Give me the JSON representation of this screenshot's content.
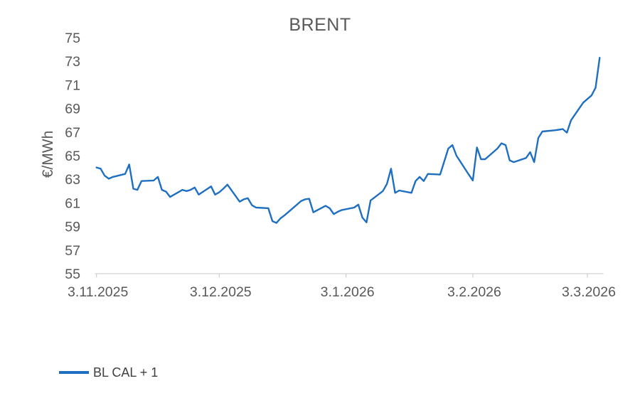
{
  "chart_data": {
    "type": "line",
    "title": "BRENT",
    "ylabel": "€/MWh",
    "ylim": [
      55,
      75
    ],
    "y_ticks": [
      55,
      57,
      59,
      61,
      63,
      65,
      67,
      69,
      71,
      73,
      75
    ],
    "x_ticks": [
      {
        "label": "3.11.2025",
        "day": 0
      },
      {
        "label": "3.12.2025",
        "day": 30
      },
      {
        "label": "3.1.2026",
        "day": 61
      },
      {
        "label": "3.2.2026",
        "day": 92
      },
      {
        "label": "3.3.2026",
        "day": 120
      }
    ],
    "grid": false,
    "legend_position": "bottom-left",
    "series": [
      {
        "name": "BL CAL + 1",
        "color": "#1E6FC2",
        "x_days": [
          0,
          1,
          2,
          3,
          4,
          7,
          8,
          9,
          10,
          11,
          14,
          15,
          16,
          17,
          18,
          21,
          22,
          23,
          24,
          25,
          28,
          29,
          30,
          31,
          32,
          35,
          36,
          37,
          38,
          39,
          42,
          43,
          44,
          45,
          46,
          49,
          50,
          51,
          52,
          53,
          56,
          57,
          58,
          59,
          60,
          63,
          64,
          65,
          66,
          67,
          70,
          71,
          72,
          73,
          74,
          77,
          78,
          79,
          80,
          81,
          84,
          85,
          86,
          87,
          88,
          91,
          92,
          93,
          94,
          95,
          98,
          99,
          100,
          101,
          102,
          105,
          106,
          107,
          108,
          109,
          112,
          113,
          114,
          115,
          116,
          119,
          120,
          121,
          122,
          123
        ],
        "values": [
          64.0,
          63.9,
          63.3,
          63.05,
          63.2,
          63.45,
          64.25,
          62.2,
          62.1,
          62.85,
          62.9,
          63.2,
          62.1,
          61.95,
          61.5,
          62.1,
          62.0,
          62.1,
          62.3,
          61.7,
          62.4,
          61.7,
          61.9,
          62.2,
          62.55,
          61.1,
          61.3,
          61.4,
          60.8,
          60.6,
          60.55,
          59.45,
          59.3,
          59.7,
          59.95,
          60.85,
          61.15,
          61.3,
          61.35,
          60.2,
          60.75,
          60.55,
          60.05,
          60.25,
          60.4,
          60.6,
          60.85,
          59.75,
          59.35,
          61.2,
          62.0,
          62.6,
          63.9,
          61.85,
          62.05,
          61.85,
          62.85,
          63.2,
          62.85,
          63.45,
          63.4,
          64.5,
          65.6,
          65.9,
          65.0,
          63.4,
          62.9,
          65.7,
          64.7,
          64.7,
          65.6,
          66.05,
          65.9,
          64.6,
          64.45,
          64.8,
          65.3,
          64.45,
          66.5,
          67.05,
          67.15,
          67.2,
          67.25,
          66.95,
          68.0,
          69.5,
          69.8,
          70.1,
          70.75,
          73.3
        ]
      }
    ]
  },
  "colors": {
    "series_line": "#1E6FC2",
    "axis_line": "#D9D9D9",
    "tick_mark": "#D0D0D0",
    "axis_label_text": "#595959",
    "title_text": "#595959",
    "legend_text": "#404040",
    "background": "#FFFFFF"
  }
}
